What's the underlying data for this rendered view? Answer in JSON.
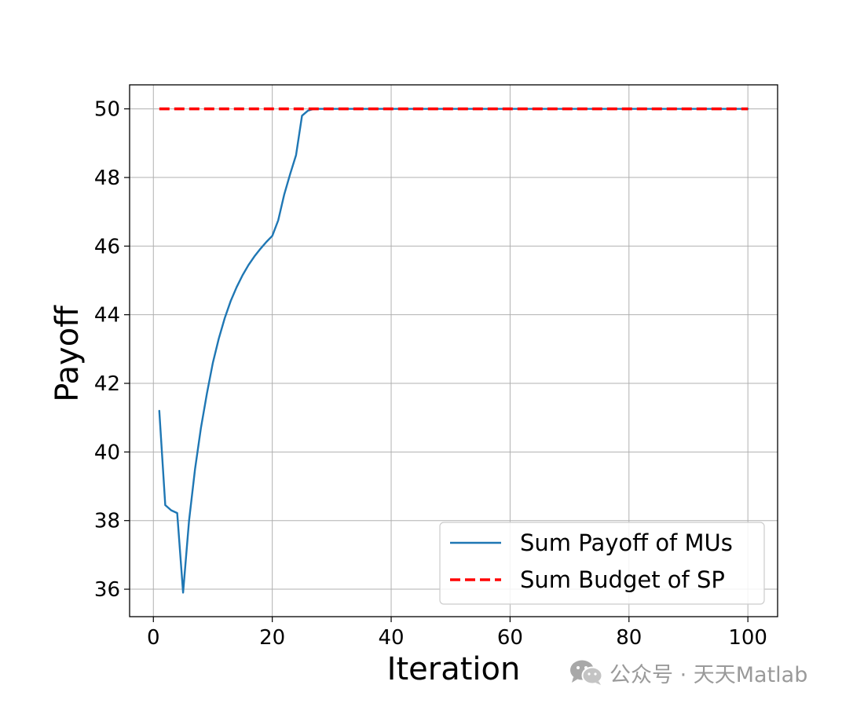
{
  "chart_data": {
    "type": "line",
    "xlabel": "Iteration",
    "ylabel": "Payoff",
    "xlim": [
      -4,
      105
    ],
    "ylim": [
      35.2,
      50.7
    ],
    "xticks": [
      0,
      20,
      40,
      60,
      80,
      100
    ],
    "yticks": [
      36,
      38,
      40,
      42,
      44,
      46,
      48,
      50
    ],
    "grid": true,
    "legend_position": "lower-right",
    "series": [
      {
        "name": "Sum Payoff of MUs",
        "color": "#1f77b4",
        "style": "solid",
        "x": [
          1,
          2,
          3,
          4,
          5,
          6,
          7,
          8,
          9,
          10,
          11,
          12,
          13,
          14,
          15,
          16,
          17,
          18,
          19,
          20,
          21,
          22,
          23,
          24,
          25,
          26,
          27,
          28,
          29,
          30,
          35,
          40,
          45,
          50,
          55,
          60,
          65,
          70,
          75,
          80,
          85,
          90,
          95,
          100
        ],
        "y": [
          41.2,
          38.45,
          38.3,
          38.22,
          35.9,
          38.0,
          39.5,
          40.7,
          41.7,
          42.6,
          43.3,
          43.9,
          44.4,
          44.8,
          45.15,
          45.45,
          45.7,
          45.92,
          46.12,
          46.3,
          46.75,
          47.5,
          48.1,
          48.65,
          49.8,
          49.95,
          50.0,
          50.0,
          50.0,
          50.0,
          50.0,
          50.0,
          50.0,
          50.0,
          50.0,
          50.0,
          50.0,
          50.0,
          50.0,
          50.0,
          50.0,
          50.0,
          50.0,
          50.0
        ]
      },
      {
        "name": "Sum Budget of SP",
        "color": "#ff0000",
        "style": "dashed",
        "x": [
          1,
          100
        ],
        "y": [
          50.0,
          50.0
        ]
      }
    ]
  },
  "watermark": {
    "text": "公众号 · 天天Matlab",
    "icon": "wechat-icon"
  }
}
